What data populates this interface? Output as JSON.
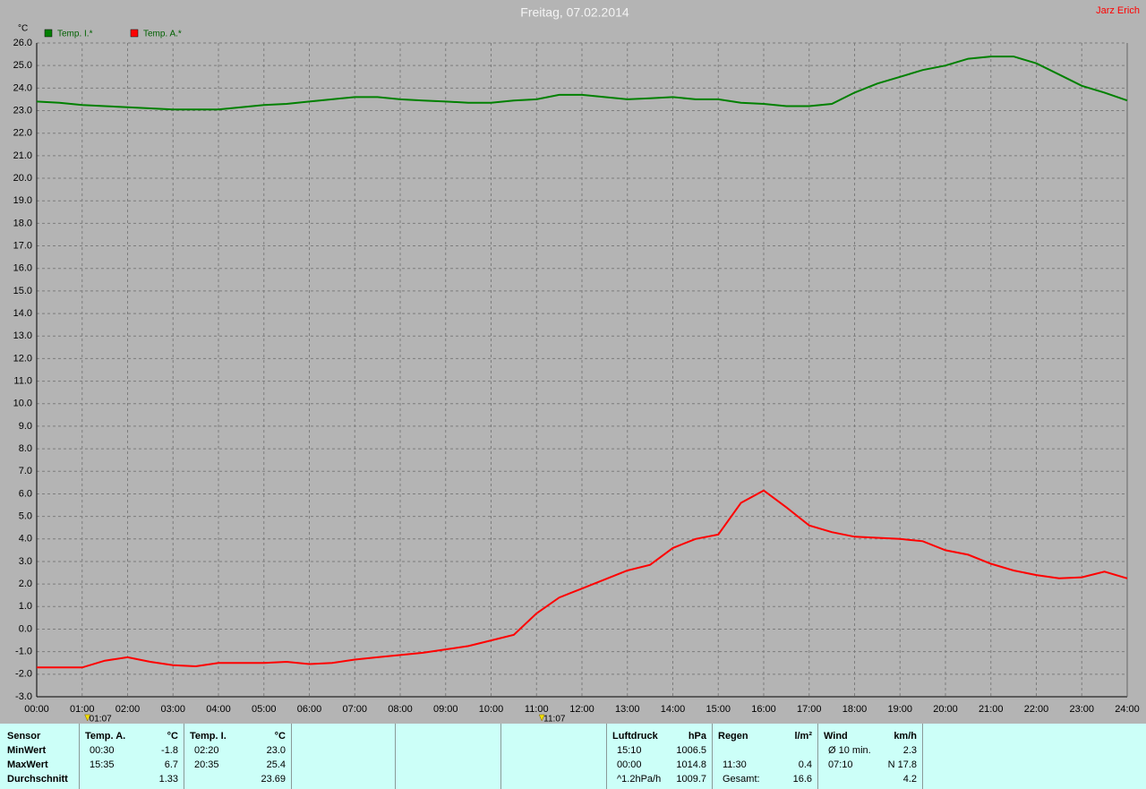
{
  "chart_data": {
    "type": "line",
    "title": "Freitag, 07.02.2014",
    "author": "Jarz Erich",
    "y_unit": "°C",
    "x": [
      0,
      0.5,
      1,
      1.5,
      2,
      2.5,
      3,
      3.5,
      4,
      4.5,
      5,
      5.5,
      6,
      6.5,
      7,
      7.5,
      8,
      8.5,
      9,
      9.5,
      10,
      10.5,
      11,
      11.5,
      12,
      12.5,
      13,
      13.5,
      14,
      14.5,
      15,
      15.5,
      16,
      16.5,
      17,
      17.5,
      18,
      18.5,
      19,
      19.5,
      20,
      20.5,
      21,
      21.5,
      22,
      22.5,
      23,
      23.5,
      24
    ],
    "series": [
      {
        "name": "Temp. I.*",
        "color": "#008000",
        "values": [
          23.4,
          23.35,
          23.25,
          23.2,
          23.15,
          23.1,
          23.05,
          23.05,
          23.05,
          23.15,
          23.25,
          23.3,
          23.4,
          23.5,
          23.6,
          23.6,
          23.5,
          23.45,
          23.4,
          23.35,
          23.35,
          23.45,
          23.5,
          23.7,
          23.7,
          23.6,
          23.5,
          23.55,
          23.6,
          23.5,
          23.5,
          23.35,
          23.3,
          23.2,
          23.2,
          23.3,
          23.8,
          24.2,
          24.5,
          24.8,
          25.0,
          25.3,
          25.4,
          25.4,
          25.1,
          24.6,
          24.1,
          23.8,
          23.45
        ]
      },
      {
        "name": "Temp. A.*",
        "color": "#ff0000",
        "values": [
          -1.7,
          -1.7,
          -1.7,
          -1.4,
          -1.25,
          -1.45,
          -1.6,
          -1.65,
          -1.5,
          -1.5,
          -1.5,
          -1.45,
          -1.55,
          -1.5,
          -1.35,
          -1.25,
          -1.15,
          -1.05,
          -0.9,
          -0.75,
          -0.5,
          -0.25,
          0.7,
          1.4,
          1.8,
          2.2,
          2.6,
          2.85,
          3.6,
          4.0,
          4.2,
          5.6,
          6.15,
          5.4,
          4.6,
          4.3,
          4.1,
          4.05,
          4.0,
          3.9,
          3.5,
          3.3,
          2.9,
          2.6,
          2.4,
          2.25,
          2.3,
          2.55,
          2.25
        ]
      }
    ],
    "xlim": [
      0,
      24
    ],
    "xticks": [
      {
        "value": 0,
        "label": "00:00"
      },
      {
        "value": 1,
        "label": "01:00"
      },
      {
        "value": 2,
        "label": "02:00"
      },
      {
        "value": 3,
        "label": "03:00"
      },
      {
        "value": 4,
        "label": "04:00"
      },
      {
        "value": 5,
        "label": "05:00"
      },
      {
        "value": 6,
        "label": "06:00"
      },
      {
        "value": 7,
        "label": "07:00"
      },
      {
        "value": 8,
        "label": "08:00"
      },
      {
        "value": 9,
        "label": "09:00"
      },
      {
        "value": 10,
        "label": "10:00"
      },
      {
        "value": 11,
        "label": "11:00"
      },
      {
        "value": 12,
        "label": "12:00"
      },
      {
        "value": 13,
        "label": "13:00"
      },
      {
        "value": 14,
        "label": "14:00"
      },
      {
        "value": 15,
        "label": "15:00"
      },
      {
        "value": 16,
        "label": "16:00"
      },
      {
        "value": 17,
        "label": "17:00"
      },
      {
        "value": 18,
        "label": "18:00"
      },
      {
        "value": 19,
        "label": "19:00"
      },
      {
        "value": 20,
        "label": "20:00"
      },
      {
        "value": 21,
        "label": "21:00"
      },
      {
        "value": 22,
        "label": "22:00"
      },
      {
        "value": 23,
        "label": "23:00"
      },
      {
        "value": 24,
        "label": "24:00"
      }
    ],
    "ylim": [
      -3,
      26
    ],
    "yticks": [
      {
        "value": -3,
        "label": "-3.0"
      },
      {
        "value": -2,
        "label": "-2.0"
      },
      {
        "value": -1,
        "label": "-1.0"
      },
      {
        "value": 0,
        "label": "0.0"
      },
      {
        "value": 1,
        "label": "1.0"
      },
      {
        "value": 2,
        "label": "2.0"
      },
      {
        "value": 3,
        "label": "3.0"
      },
      {
        "value": 4,
        "label": "4.0"
      },
      {
        "value": 5,
        "label": "5.0"
      },
      {
        "value": 6,
        "label": "6.0"
      },
      {
        "value": 7,
        "label": "7.0"
      },
      {
        "value": 8,
        "label": "8.0"
      },
      {
        "value": 9,
        "label": "9.0"
      },
      {
        "value": 10,
        "label": "10.0"
      },
      {
        "value": 11,
        "label": "11.0"
      },
      {
        "value": 12,
        "label": "12.0"
      },
      {
        "value": 13,
        "label": "13.0"
      },
      {
        "value": 14,
        "label": "14.0"
      },
      {
        "value": 15,
        "label": "15.0"
      },
      {
        "value": 16,
        "label": "16.0"
      },
      {
        "value": 17,
        "label": "17.0"
      },
      {
        "value": 18,
        "label": "18.0"
      },
      {
        "value": 19,
        "label": "19.0"
      },
      {
        "value": 20,
        "label": "20.0"
      },
      {
        "value": 21,
        "label": "21.0"
      },
      {
        "value": 22,
        "label": "22.0"
      },
      {
        "value": 23,
        "label": "23.0"
      },
      {
        "value": 24,
        "label": "24.0"
      },
      {
        "value": 25,
        "label": "25.0"
      },
      {
        "value": 26,
        "label": "26.0"
      }
    ],
    "grid": true,
    "markers": [
      {
        "value": 1.1167,
        "label": "01:07"
      },
      {
        "value": 11.1167,
        "label": "11:07"
      }
    ]
  },
  "stats": {
    "row_labels": {
      "header": "Sensor",
      "rows": [
        "MinWert",
        "MaxWert",
        "Durchschnitt"
      ]
    },
    "panels": [
      {
        "header": "Temp. A.",
        "unit": "°C",
        "rows": {
          "min": {
            "left": "00:30",
            "right": "-1.8"
          },
          "max": {
            "left": "15:35",
            "right": "6.7"
          },
          "avg": {
            "right": "1.33"
          }
        }
      },
      {
        "header": "Temp. I.",
        "unit": "°C",
        "rows": {
          "min": {
            "left": "02:20",
            "right": "23.0"
          },
          "max": {
            "left": "20:35",
            "right": "25.4"
          },
          "avg": {
            "right": "23.69"
          }
        }
      },
      {
        "header": "Luftdruck",
        "unit": "hPa",
        "rows": {
          "min": {
            "left": "15:10",
            "right": "1006.5"
          },
          "max": {
            "left": "00:00",
            "right": "1014.8"
          },
          "avg": {
            "left": "^1.2hPa/h",
            "right": "1009.7"
          }
        }
      },
      {
        "header": "Regen",
        "unit": "l/m²",
        "rows": {
          "max": {
            "left": "11:30",
            "right": "0.4"
          },
          "avg": {
            "left": "Gesamt:",
            "right": "16.6"
          }
        }
      },
      {
        "header": "Wind",
        "unit": "km/h",
        "rows": {
          "min": {
            "left": "Ø 10 min.",
            "right": "2.3"
          },
          "max": {
            "left": "07:10",
            "right": "N 17.8"
          },
          "avg": {
            "right": "4.2"
          }
        }
      }
    ]
  }
}
